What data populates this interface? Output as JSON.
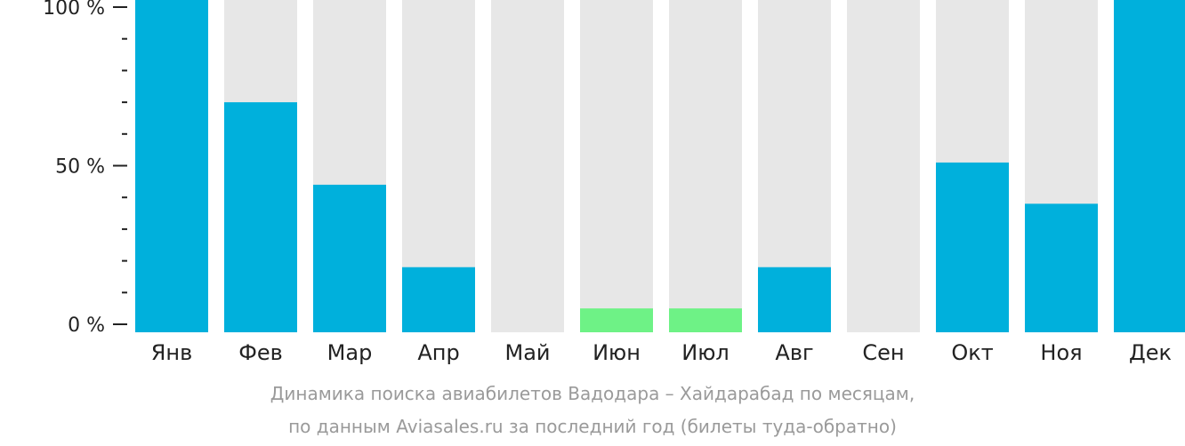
{
  "chart_data": {
    "type": "bar",
    "categories": [
      "Янв",
      "Фев",
      "Мар",
      "Апр",
      "Май",
      "Июн",
      "Июл",
      "Авг",
      "Сен",
      "Окт",
      "Ноя",
      "Дек"
    ],
    "values": [
      100,
      70,
      44,
      18,
      0,
      5,
      5,
      18,
      0,
      51,
      38,
      100
    ],
    "highlight": [
      false,
      false,
      false,
      false,
      false,
      true,
      true,
      false,
      false,
      false,
      false,
      false
    ],
    "ylim": [
      0,
      100
    ],
    "y_ticks": [
      {
        "value": 0,
        "label": "0 %"
      },
      {
        "value": 50,
        "label": "50 %"
      },
      {
        "value": 100,
        "label": "100 %"
      }
    ],
    "y_minor_step": 10,
    "xlabel": "",
    "ylabel": "",
    "grid": false,
    "colors": {
      "bar": "#00b0dc",
      "bar_highlight": "#6ef286",
      "track": "#e7e7e7",
      "axis": "#222222"
    }
  },
  "caption": {
    "line1": "Динамика поиска авиабилетов Вадодара – Хайдарабад по месяцам,",
    "line2": "по данным Aviasales.ru за последний год (билеты туда-обратно)"
  }
}
